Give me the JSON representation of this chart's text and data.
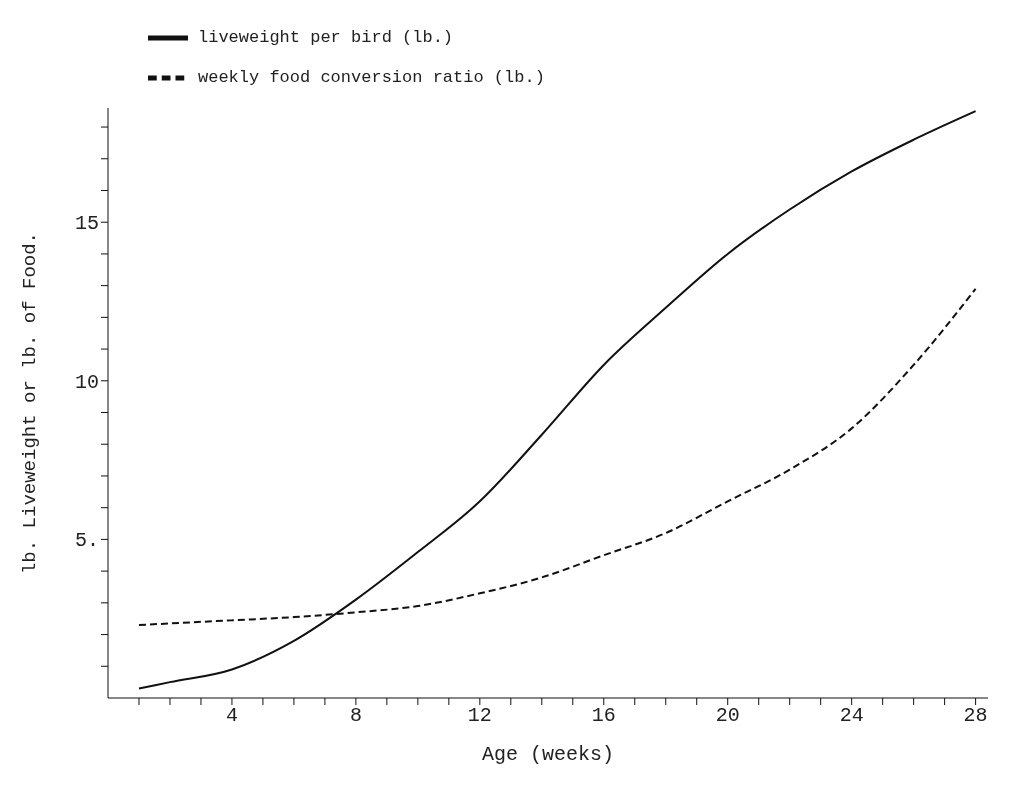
{
  "chart_data": {
    "type": "line",
    "xlabel": "Age (weeks)",
    "ylabel": "lb. Liveweight or lb. of Food.",
    "x": [
      1,
      2,
      4,
      6,
      8,
      10,
      12,
      14,
      16,
      18,
      20,
      22,
      24,
      26,
      28
    ],
    "series": [
      {
        "name": "liveweight per bird (lb.)",
        "color": "#111111",
        "line_style": "solid",
        "values": [
          0.3,
          0.5,
          0.9,
          1.8,
          3.1,
          4.6,
          6.2,
          8.3,
          10.5,
          12.3,
          14,
          15.4,
          16.6,
          17.6,
          18.5
        ]
      },
      {
        "name": "weekly food conversion ratio (lb.)",
        "color": "#111111",
        "line_style": "dashed",
        "values": [
          2.3,
          2.35,
          2.45,
          2.55,
          2.7,
          2.9,
          3.3,
          3.8,
          4.5,
          5.2,
          6.2,
          7.2,
          8.5,
          10.5,
          12.9
        ]
      }
    ],
    "xlim": [
      0,
      28.4
    ],
    "xticks": [
      {
        "value": 1,
        "label": null
      },
      {
        "value": 2,
        "label": null
      },
      {
        "value": 3,
        "label": null
      },
      4,
      {
        "value": 5,
        "label": null
      },
      {
        "value": 6,
        "label": null
      },
      {
        "value": 7,
        "label": null
      },
      8,
      {
        "value": 9,
        "label": null
      },
      {
        "value": 10,
        "label": null
      },
      {
        "value": 11,
        "label": null
      },
      12,
      {
        "value": 13,
        "label": null
      },
      {
        "value": 14,
        "label": null
      },
      {
        "value": 15,
        "label": null
      },
      16,
      {
        "value": 17,
        "label": null
      },
      {
        "value": 18,
        "label": null
      },
      {
        "value": 19,
        "label": null
      },
      20,
      {
        "value": 21,
        "label": null
      },
      {
        "value": 22,
        "label": null
      },
      {
        "value": 23,
        "label": null
      },
      24,
      {
        "value": 25,
        "label": null
      },
      {
        "value": 26,
        "label": null
      },
      {
        "value": 27,
        "label": null
      },
      28
    ],
    "ylim": [
      0,
      18.6
    ],
    "yticks": [
      {
        "value": 1,
        "label": null
      },
      {
        "value": 2,
        "label": null
      },
      {
        "value": 3,
        "label": null
      },
      {
        "value": 4,
        "label": null
      },
      {
        "value": 5,
        "label": "5."
      },
      {
        "value": 6,
        "label": null
      },
      {
        "value": 7,
        "label": null
      },
      {
        "value": 8,
        "label": null
      },
      {
        "value": 9,
        "label": null
      },
      10,
      {
        "value": 11,
        "label": null
      },
      {
        "value": 12,
        "label": null
      },
      {
        "value": 13,
        "label": null
      },
      {
        "value": 14,
        "label": null
      },
      15,
      {
        "value": 16,
        "label": null
      },
      {
        "value": 17,
        "label": null
      },
      {
        "value": 18,
        "label": null
      }
    ],
    "grid": false,
    "legend": "top left",
    "marker": "none"
  }
}
